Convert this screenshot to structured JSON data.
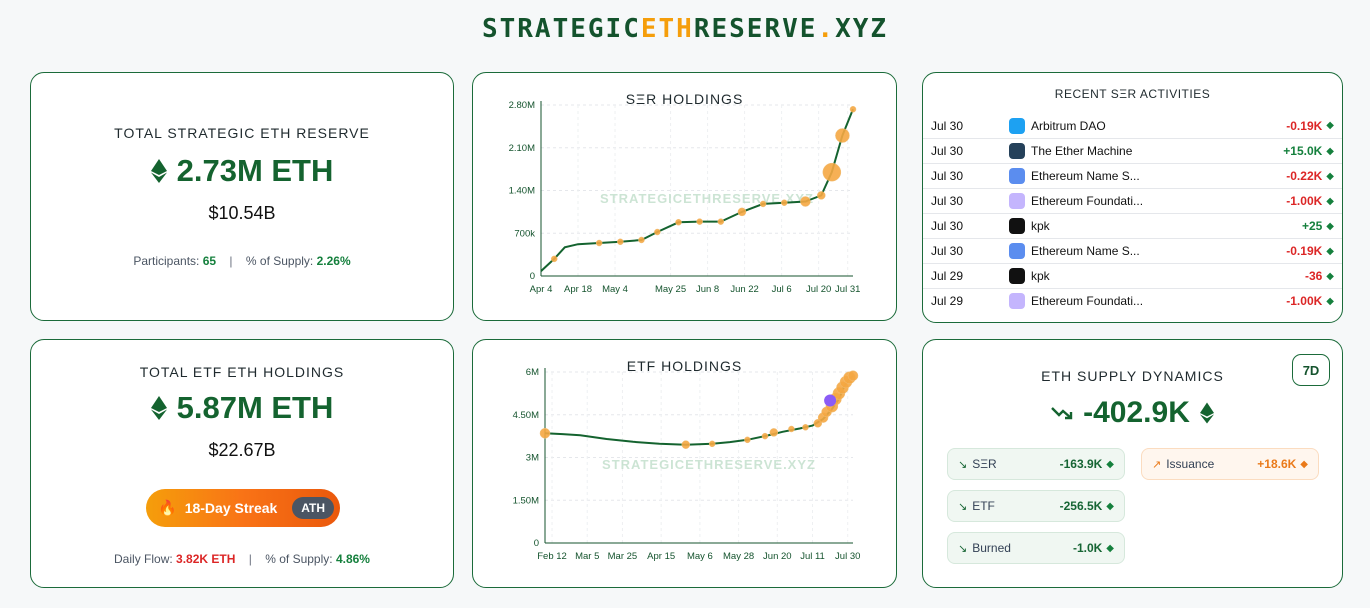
{
  "logo": {
    "part1": "STRATEGIC",
    "part2": "ETH",
    "part3": "RESERVE",
    "part4": ".",
    "part5": "XYZ"
  },
  "ser_total": {
    "title": "TOTAL STRATEGIC ETH RESERVE",
    "amount": "2.73M ETH",
    "usd": "$10.54B",
    "participants_label": "Participants:",
    "participants_value": "65",
    "supply_label": "% of Supply:",
    "supply_value": "2.26%"
  },
  "etf_total": {
    "title": "TOTAL ETF ETH HOLDINGS",
    "amount": "5.87M ETH",
    "usd": "$22.67B",
    "streak": "18-Day Streak",
    "ath": "ATH",
    "flow_label": "Daily Flow:",
    "flow_value": "3.82K ETH",
    "supply_label": "% of Supply:",
    "supply_value": "4.86%"
  },
  "watermark": "STRATEGICETHRESERVE.XYZ",
  "chart_data": [
    {
      "type": "line",
      "title": "SΞR HOLDINGS",
      "x_ticks": [
        "Apr 4",
        "Apr 18",
        "May 4",
        "May 25",
        "Jun 8",
        "Jun 22",
        "Jul 6",
        "Jul 20",
        "Jul 31"
      ],
      "y_ticks": [
        "0",
        "700k",
        "1.40M",
        "2.10M",
        "2.80M"
      ],
      "ylim": [
        0,
        2800000
      ],
      "x_day_range": [
        0,
        118
      ],
      "series": [
        {
          "values": [
            [
              0,
              80000
            ],
            [
              5,
              280000
            ],
            [
              9,
              470000
            ],
            [
              14,
              520000
            ],
            [
              22,
              540000
            ],
            [
              30,
              560000
            ],
            [
              38,
              590000
            ],
            [
              44,
              720000
            ],
            [
              52,
              880000
            ],
            [
              60,
              890000
            ],
            [
              68,
              890000
            ],
            [
              76,
              1050000
            ],
            [
              84,
              1180000
            ],
            [
              92,
              1200000
            ],
            [
              100,
              1220000
            ],
            [
              106,
              1320000
            ],
            [
              110,
              1700000
            ],
            [
              114,
              2300000
            ],
            [
              118,
              2730000
            ]
          ]
        }
      ],
      "markers": [
        [
          5,
          280000,
          3
        ],
        [
          22,
          540000,
          3
        ],
        [
          30,
          560000,
          3
        ],
        [
          38,
          590000,
          3
        ],
        [
          44,
          720000,
          3
        ],
        [
          52,
          880000,
          3
        ],
        [
          60,
          890000,
          3
        ],
        [
          68,
          890000,
          3
        ],
        [
          76,
          1050000,
          4
        ],
        [
          84,
          1180000,
          3
        ],
        [
          92,
          1200000,
          3
        ],
        [
          100,
          1220000,
          5
        ],
        [
          106,
          1320000,
          4
        ],
        [
          110,
          1700000,
          9
        ],
        [
          114,
          2300000,
          7
        ],
        [
          118,
          2730000,
          3
        ]
      ]
    },
    {
      "type": "line",
      "title": "ETF HOLDINGS",
      "x_ticks": [
        "Feb 12",
        "Mar 5",
        "Mar 25",
        "Apr 15",
        "May 6",
        "May 28",
        "Jun 20",
        "Jul 11",
        "Jul 30"
      ],
      "y_ticks": [
        "0",
        "1.50M",
        "3M",
        "4.50M",
        "6M"
      ],
      "ylim": [
        0,
        6000000
      ],
      "x_day_range": [
        0,
        175
      ],
      "series": [
        {
          "values": [
            [
              0,
              3850000
            ],
            [
              10,
              3820000
            ],
            [
              20,
              3780000
            ],
            [
              35,
              3650000
            ],
            [
              50,
              3550000
            ],
            [
              65,
              3480000
            ],
            [
              80,
              3450000
            ],
            [
              95,
              3480000
            ],
            [
              105,
              3540000
            ],
            [
              115,
              3620000
            ],
            [
              125,
              3750000
            ],
            [
              135,
              3900000
            ],
            [
              145,
              4020000
            ],
            [
              152,
              4120000
            ],
            [
              158,
              4350000
            ],
            [
              163,
              4700000
            ],
            [
              167,
              5050000
            ],
            [
              170,
              5500000
            ],
            [
              173,
              5750000
            ],
            [
              175,
              5870000
            ]
          ]
        }
      ],
      "markers": [
        [
          0,
          3850000,
          5
        ],
        [
          80,
          3450000,
          4
        ],
        [
          95,
          3480000,
          3
        ],
        [
          115,
          3620000,
          3
        ],
        [
          125,
          3750000,
          3
        ],
        [
          130,
          3880000,
          4
        ],
        [
          140,
          4000000,
          3
        ],
        [
          148,
          4060000,
          3
        ],
        [
          155,
          4200000,
          4
        ],
        [
          158,
          4400000,
          5
        ],
        [
          160,
          4600000,
          5
        ],
        [
          163,
          4800000,
          6
        ],
        [
          165,
          5050000,
          6
        ],
        [
          167,
          5250000,
          6
        ],
        [
          169,
          5450000,
          6
        ],
        [
          171,
          5650000,
          6
        ],
        [
          173,
          5800000,
          6
        ],
        [
          175,
          5870000,
          5
        ]
      ],
      "highlight": [
        162,
        5000000,
        6
      ]
    }
  ],
  "activities": {
    "title": "RECENT SΞR ACTIVITIES",
    "rows": [
      {
        "date": "Jul 30",
        "name": "Arbitrum DAO",
        "amount": "-0.19K",
        "dir": "neg",
        "icon": "#1da1f2"
      },
      {
        "date": "Jul 30",
        "name": "The Ether Machine",
        "amount": "+15.0K",
        "dir": "pos",
        "icon": "#25415a"
      },
      {
        "date": "Jul 30",
        "name": "Ethereum Name S...",
        "amount": "-0.22K",
        "dir": "neg",
        "icon": "#5b8def"
      },
      {
        "date": "Jul 30",
        "name": "Ethereum Foundati...",
        "amount": "-1.00K",
        "dir": "neg",
        "icon": "#c4b5fd"
      },
      {
        "date": "Jul 30",
        "name": "kpk",
        "amount": "+25",
        "dir": "pos",
        "icon": "#111111"
      },
      {
        "date": "Jul 30",
        "name": "Ethereum Name S...",
        "amount": "-0.19K",
        "dir": "neg",
        "icon": "#5b8def"
      },
      {
        "date": "Jul 29",
        "name": "kpk",
        "amount": "-36",
        "dir": "neg",
        "icon": "#111111"
      },
      {
        "date": "Jul 29",
        "name": "Ethereum Foundati...",
        "amount": "-1.00K",
        "dir": "neg",
        "icon": "#c4b5fd"
      }
    ]
  },
  "supply": {
    "title": "ETH SUPPLY DYNAMICS",
    "period": "7D",
    "total": "-402.9K",
    "ser_label": "SΞR",
    "ser_value": "-163.9K",
    "etf_label": "ETF",
    "etf_value": "-256.5K",
    "burned_label": "Burned",
    "burned_value": "-1.0K",
    "issuance_label": "Issuance",
    "issuance_value": "+18.6K"
  },
  "colors": {
    "green": "#14632f",
    "orange": "#f59e0b",
    "purple": "#8b5cf6",
    "red": "#dc2626"
  }
}
